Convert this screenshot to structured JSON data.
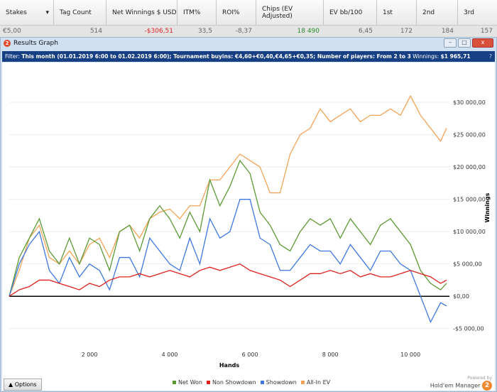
{
  "table": {
    "headers": [
      "Stakes",
      "Tag Count",
      "Net Winnings $ USD",
      "ITM%",
      "ROI%",
      "Chips (EV Adjusted)",
      "EV bb/100",
      "1st",
      "2nd",
      "3rd"
    ],
    "row": [
      "€5,00",
      "514",
      "-$306,51",
      "33,5",
      "-8,37",
      "18 490",
      "6,45",
      "172",
      "184",
      "157"
    ]
  },
  "window": {
    "title": "Results Graph",
    "logo": "2",
    "minimize": "–",
    "maximize": "□",
    "close": "x"
  },
  "filter": {
    "label": "Filter:",
    "text": "This month (01.01.2019 6:00 to 01.02.2019 6:00); Tournament buyins: €4,60+€0,40,€4,65+€0,35; Number of players: From 2 to 3",
    "winnings_label": "Winnings:",
    "winnings": "$1 965,71",
    "help": "?"
  },
  "footer": {
    "options": "▲  Options",
    "powered": "Powered by",
    "brand": "Hold'em Manager",
    "brand_logo": "2"
  },
  "chart_data": {
    "type": "line",
    "xlabel": "Hands",
    "ylabel": "Winnings",
    "xlim": [
      0,
      10970
    ],
    "ylim": [
      -8000,
      35400
    ],
    "xticks": [
      2000,
      4000,
      6000,
      8000,
      10000
    ],
    "xtick_labels": [
      "2 000",
      "4 000",
      "6 000",
      "8 000",
      "10 000"
    ],
    "yticks": [
      -5000,
      0,
      5000,
      10000,
      15000,
      20000,
      25000,
      30000
    ],
    "ytick_labels": [
      "-$5 000,00",
      "$0,00",
      "$5 000,00",
      "$10 000,00",
      "$15 000,00",
      "$20 000,00",
      "$25 000,00",
      "$30 000,00"
    ],
    "x": [
      0,
      250,
      500,
      750,
      1000,
      1250,
      1500,
      1750,
      2000,
      2250,
      2500,
      2750,
      3000,
      3250,
      3500,
      3750,
      4000,
      4250,
      4500,
      4750,
      5000,
      5250,
      5500,
      5750,
      6000,
      6250,
      6500,
      6750,
      7000,
      7250,
      7500,
      7750,
      8000,
      8250,
      8500,
      8750,
      9000,
      9250,
      9500,
      9750,
      10000,
      10250,
      10500,
      10750,
      10900
    ],
    "series": [
      {
        "name": "Net Won",
        "color": "#5b9a33",
        "values": [
          0,
          6000,
          9000,
          12000,
          7000,
          5000,
          9000,
          5000,
          9000,
          8000,
          4000,
          10000,
          11000,
          7000,
          12000,
          14000,
          12000,
          9000,
          13000,
          10000,
          18000,
          14000,
          17000,
          21000,
          19000,
          13000,
          11000,
          8000,
          7000,
          10000,
          12000,
          11000,
          12000,
          9000,
          12000,
          10000,
          8000,
          11000,
          12000,
          10000,
          8000,
          4000,
          2000,
          1000,
          2000
        ]
      },
      {
        "name": "Non Showdown",
        "color": "#e0201a",
        "values": [
          0,
          1000,
          1500,
          2500,
          2500,
          2000,
          1500,
          1000,
          2000,
          1500,
          2500,
          3000,
          3000,
          3500,
          3000,
          3500,
          4000,
          3500,
          3000,
          4000,
          4500,
          4000,
          4500,
          5000,
          4000,
          3500,
          3000,
          2500,
          1500,
          2500,
          3500,
          3500,
          4000,
          3500,
          4000,
          3000,
          3500,
          3000,
          3000,
          3500,
          4000,
          3500,
          3000,
          2000,
          2500
        ]
      },
      {
        "name": "Showdown",
        "color": "#3c78e0",
        "values": [
          0,
          5000,
          8000,
          10000,
          4000,
          2000,
          6000,
          3000,
          5000,
          4000,
          1000,
          6000,
          6000,
          3000,
          9000,
          7000,
          5000,
          4000,
          9000,
          5000,
          12000,
          9000,
          10000,
          15000,
          15000,
          9000,
          8000,
          4000,
          4000,
          6000,
          8000,
          7000,
          7000,
          5000,
          8000,
          6000,
          4000,
          7000,
          7000,
          5000,
          4000,
          0,
          -4000,
          -1000,
          -1500
        ]
      },
      {
        "name": "All-In EV",
        "color": "#f4a356",
        "values": [
          0,
          4000,
          9000,
          11000,
          6000,
          5000,
          7000,
          5000,
          8000,
          9000,
          6000,
          10000,
          11000,
          9000,
          12000,
          13000,
          13500,
          12000,
          14000,
          14000,
          18000,
          18000,
          20000,
          22000,
          21000,
          20000,
          16000,
          16000,
          22000,
          25000,
          26000,
          29000,
          27000,
          28000,
          29000,
          27000,
          28000,
          28000,
          29000,
          28000,
          31000,
          28000,
          26000,
          24000,
          26000
        ]
      }
    ]
  }
}
